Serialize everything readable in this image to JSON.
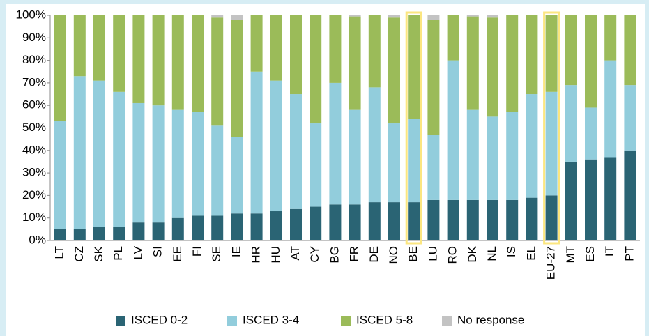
{
  "chart_data": {
    "type": "stacked_bar",
    "categories": [
      "LT",
      "CZ",
      "SK",
      "PL",
      "LV",
      "SI",
      "EE",
      "FI",
      "SE",
      "IE",
      "HR",
      "HU",
      "AT",
      "CY",
      "BG",
      "FR",
      "DE",
      "NO",
      "BE",
      "LU",
      "RO",
      "DK",
      "NL",
      "IS",
      "EL",
      "EU-27",
      "MT",
      "ES",
      "IT",
      "PT"
    ],
    "series": [
      {
        "name": "ISCED 0-2",
        "color": "#2a6474",
        "values": [
          5,
          5,
          6,
          6,
          8,
          8,
          10,
          11,
          11,
          12,
          12,
          13,
          14,
          15,
          16,
          16,
          17,
          17,
          17,
          18,
          18,
          18,
          18,
          18,
          19,
          20,
          35,
          36,
          37,
          40
        ]
      },
      {
        "name": "ISCED 3-4",
        "color": "#92cddc",
        "values": [
          48,
          68,
          65,
          60,
          53,
          52,
          48,
          46,
          40,
          34,
          63,
          58,
          51,
          37,
          54,
          42,
          51,
          35,
          37,
          29,
          62,
          40,
          37,
          39,
          46,
          46,
          34,
          23,
          43,
          29
        ]
      },
      {
        "name": "ISCED 5-8",
        "color": "#9bbb59",
        "values": [
          47,
          27,
          29,
          34,
          39,
          40,
          42,
          43,
          48,
          52,
          25,
          29,
          35,
          48,
          30,
          41.5,
          32,
          47,
          46,
          51,
          20,
          41.5,
          44,
          43,
          35,
          34,
          31,
          41,
          20,
          31
        ]
      },
      {
        "name": "No response",
        "color": "#c3c3c3",
        "values": [
          0,
          0,
          0,
          0,
          0,
          0,
          0,
          0,
          1,
          2,
          0,
          0,
          0,
          0,
          0,
          0.5,
          0,
          1,
          0,
          2,
          0,
          0.5,
          1,
          0,
          0,
          0,
          0,
          0,
          0,
          0
        ]
      }
    ],
    "ylim": [
      0,
      100
    ],
    "yticks": [
      {
        "value": 0,
        "label": "0%"
      },
      {
        "value": 10,
        "label": "10%"
      },
      {
        "value": 20,
        "label": "20%"
      },
      {
        "value": 30,
        "label": "30%"
      },
      {
        "value": 40,
        "label": "40%"
      },
      {
        "value": 50,
        "label": "50%"
      },
      {
        "value": 60,
        "label": "60%"
      },
      {
        "value": 70,
        "label": "70%"
      },
      {
        "value": 80,
        "label": "80%"
      },
      {
        "value": 90,
        "label": "90%"
      },
      {
        "value": 100,
        "label": "100%"
      }
    ],
    "highlight": [
      "BE",
      "EU-27"
    ],
    "highlight_color": "#fbe680",
    "legend": "bottom"
  }
}
